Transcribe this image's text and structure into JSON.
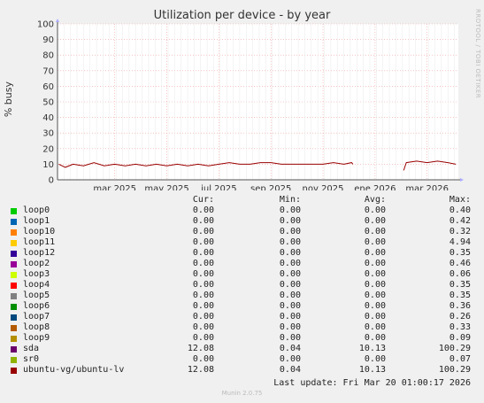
{
  "chart_data": {
    "type": "line",
    "title": "Utilization per device - by year",
    "ylabel": "% busy",
    "ylim": [
      0,
      100
    ],
    "yticks": [
      "0",
      "10",
      "20",
      "30",
      "40",
      "50",
      "60",
      "70",
      "80",
      "90",
      "100"
    ],
    "x_range_months": [
      -2.2,
      13.2
    ],
    "xticks": [
      {
        "label": "mar 2025",
        "m": 0
      },
      {
        "label": "may 2025",
        "m": 2
      },
      {
        "label": "jul 2025",
        "m": 4
      },
      {
        "label": "sep 2025",
        "m": 6
      },
      {
        "label": "nov 2025",
        "m": 8
      },
      {
        "label": "ene 2026",
        "m": 10
      },
      {
        "label": "mar 2026",
        "m": 12
      }
    ],
    "grid": true,
    "series": [
      {
        "name": "ubuntu-vg/ubuntu-lv",
        "color": "#990000",
        "segments": [
          [
            [
              -2.15,
              10
            ],
            [
              -1.9,
              8
            ],
            [
              -1.6,
              10
            ],
            [
              -1.2,
              9
            ],
            [
              -0.8,
              11
            ],
            [
              -0.4,
              9
            ],
            [
              0,
              10
            ],
            [
              0.4,
              9
            ],
            [
              0.8,
              10
            ],
            [
              1.2,
              9
            ],
            [
              1.6,
              10
            ],
            [
              2.0,
              9
            ],
            [
              2.4,
              10
            ],
            [
              2.8,
              9
            ],
            [
              3.2,
              10
            ],
            [
              3.6,
              9
            ],
            [
              4.0,
              10
            ],
            [
              4.4,
              11
            ],
            [
              4.8,
              10
            ],
            [
              5.2,
              10
            ],
            [
              5.6,
              11
            ],
            [
              6.0,
              11
            ],
            [
              6.4,
              10
            ],
            [
              6.8,
              10
            ],
            [
              7.2,
              10
            ],
            [
              7.6,
              10
            ],
            [
              8.0,
              10
            ],
            [
              8.4,
              11
            ],
            [
              8.8,
              10
            ],
            [
              9.1,
              11
            ],
            [
              9.15,
              10
            ]
          ],
          [
            [
              11.1,
              6
            ],
            [
              11.2,
              11
            ],
            [
              11.6,
              12
            ],
            [
              12.0,
              11
            ],
            [
              12.4,
              12
            ],
            [
              12.8,
              11
            ],
            [
              13.1,
              10
            ]
          ]
        ]
      }
    ]
  },
  "legend": {
    "headers": {
      "cur": "Cur:",
      "min": "Min:",
      "avg": "Avg:",
      "max": "Max:"
    },
    "rows": [
      {
        "name": "loop0",
        "color": "#00cc00",
        "cur": "0.00",
        "min": "0.00",
        "avg": "0.00",
        "max": "0.40"
      },
      {
        "name": "loop1",
        "color": "#0066b3",
        "cur": "0.00",
        "min": "0.00",
        "avg": "0.00",
        "max": "0.42"
      },
      {
        "name": "loop10",
        "color": "#ff8000",
        "cur": "0.00",
        "min": "0.00",
        "avg": "0.00",
        "max": "0.32"
      },
      {
        "name": "loop11",
        "color": "#ffcc00",
        "cur": "0.00",
        "min": "0.00",
        "avg": "0.00",
        "max": "4.94"
      },
      {
        "name": "loop12",
        "color": "#330099",
        "cur": "0.00",
        "min": "0.00",
        "avg": "0.00",
        "max": "0.35"
      },
      {
        "name": "loop2",
        "color": "#990099",
        "cur": "0.00",
        "min": "0.00",
        "avg": "0.00",
        "max": "0.46"
      },
      {
        "name": "loop3",
        "color": "#ccff00",
        "cur": "0.00",
        "min": "0.00",
        "avg": "0.00",
        "max": "0.06"
      },
      {
        "name": "loop4",
        "color": "#ff0000",
        "cur": "0.00",
        "min": "0.00",
        "avg": "0.00",
        "max": "0.35"
      },
      {
        "name": "loop5",
        "color": "#808080",
        "cur": "0.00",
        "min": "0.00",
        "avg": "0.00",
        "max": "0.35"
      },
      {
        "name": "loop6",
        "color": "#008f00",
        "cur": "0.00",
        "min": "0.00",
        "avg": "0.00",
        "max": "0.36"
      },
      {
        "name": "loop7",
        "color": "#00487d",
        "cur": "0.00",
        "min": "0.00",
        "avg": "0.00",
        "max": "0.26"
      },
      {
        "name": "loop8",
        "color": "#b35a00",
        "cur": "0.00",
        "min": "0.00",
        "avg": "0.00",
        "max": "0.33"
      },
      {
        "name": "loop9",
        "color": "#b38f00",
        "cur": "0.00",
        "min": "0.00",
        "avg": "0.00",
        "max": "0.09"
      },
      {
        "name": "sda",
        "color": "#6b006b",
        "cur": "12.08",
        "min": "0.04",
        "avg": "10.13",
        "max": "100.29"
      },
      {
        "name": "sr0",
        "color": "#8fb300",
        "cur": "0.00",
        "min": "0.00",
        "avg": "0.00",
        "max": "0.07"
      },
      {
        "name": "ubuntu-vg/ubuntu-lv",
        "color": "#990000",
        "cur": "12.08",
        "min": "0.04",
        "avg": "10.13",
        "max": "100.29"
      }
    ]
  },
  "last_update": "Last update: Fri Mar 20 01:00:17 2026",
  "side_label": "RRDTOOL / TOBI OETIKER",
  "footer": "Munin 2.0.75"
}
